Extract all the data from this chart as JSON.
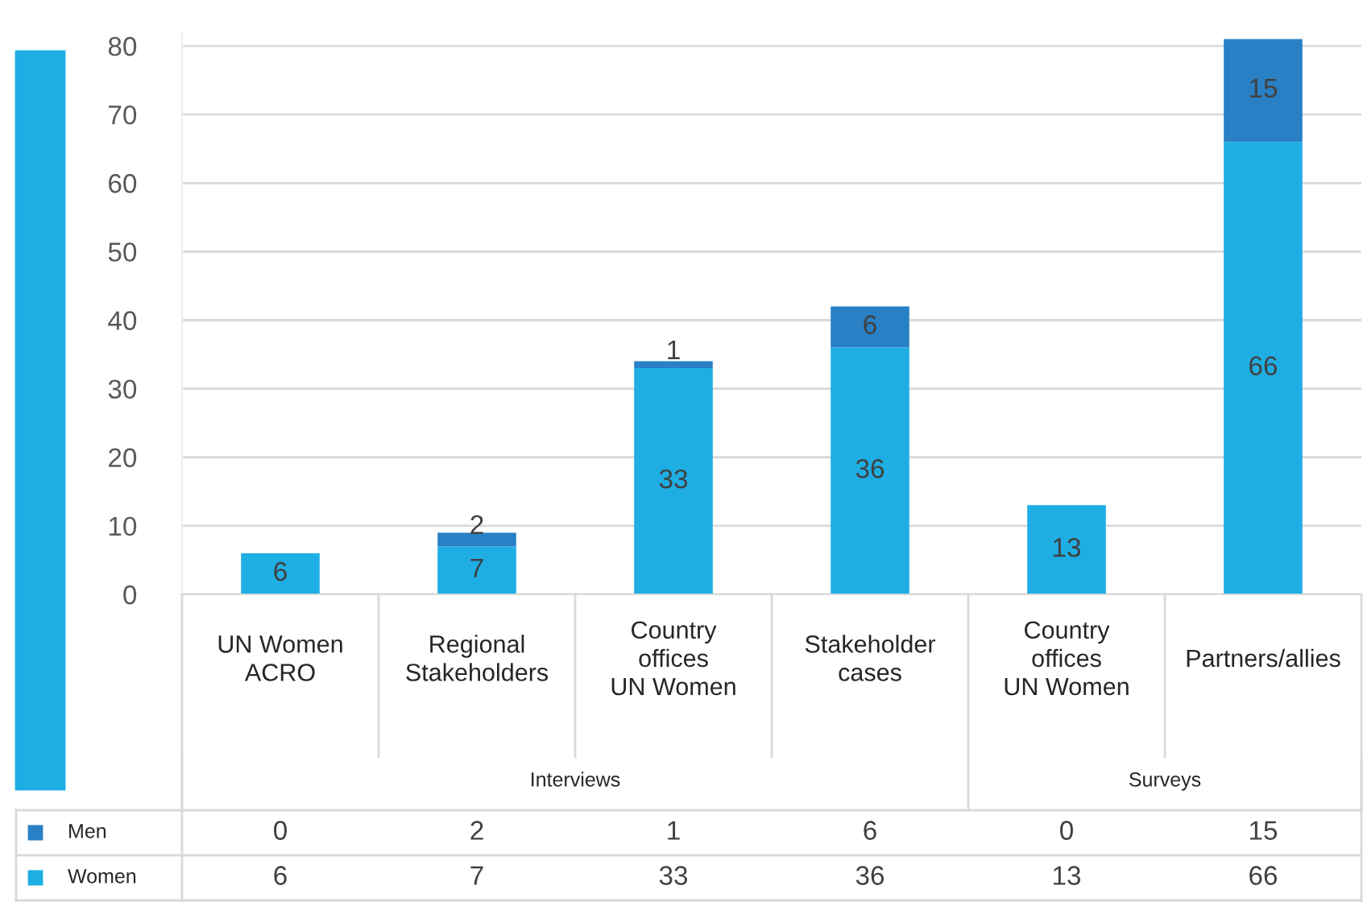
{
  "chart_data": {
    "type": "bar",
    "stacked": true,
    "categories": [
      "UN Women\nACRO",
      "Regional\nStakeholders",
      "Country\noffices\nUN Women",
      "Stakeholder\ncases",
      "Country\noffices\nUN Women",
      "Partners/allies"
    ],
    "series": [
      {
        "name": "Women",
        "color": "#1eaee4",
        "values": [
          6,
          7,
          33,
          36,
          13,
          66
        ],
        "value_labels": [
          "6",
          "7",
          "33",
          "36",
          "13",
          "66"
        ]
      },
      {
        "name": "Men",
        "color": "#2980c4",
        "values": [
          0,
          2,
          1,
          6,
          0,
          15
        ],
        "value_labels": [
          "0",
          "2",
          "1",
          "6",
          "0",
          "15"
        ]
      }
    ],
    "ylim": [
      0,
      82
    ],
    "yticks": [
      0,
      10,
      20,
      30,
      40,
      50,
      60,
      70,
      80
    ],
    "grid": "y",
    "legend": "bottom left",
    "annotations": [
      "Interviews",
      "Surveys"
    ]
  }
}
